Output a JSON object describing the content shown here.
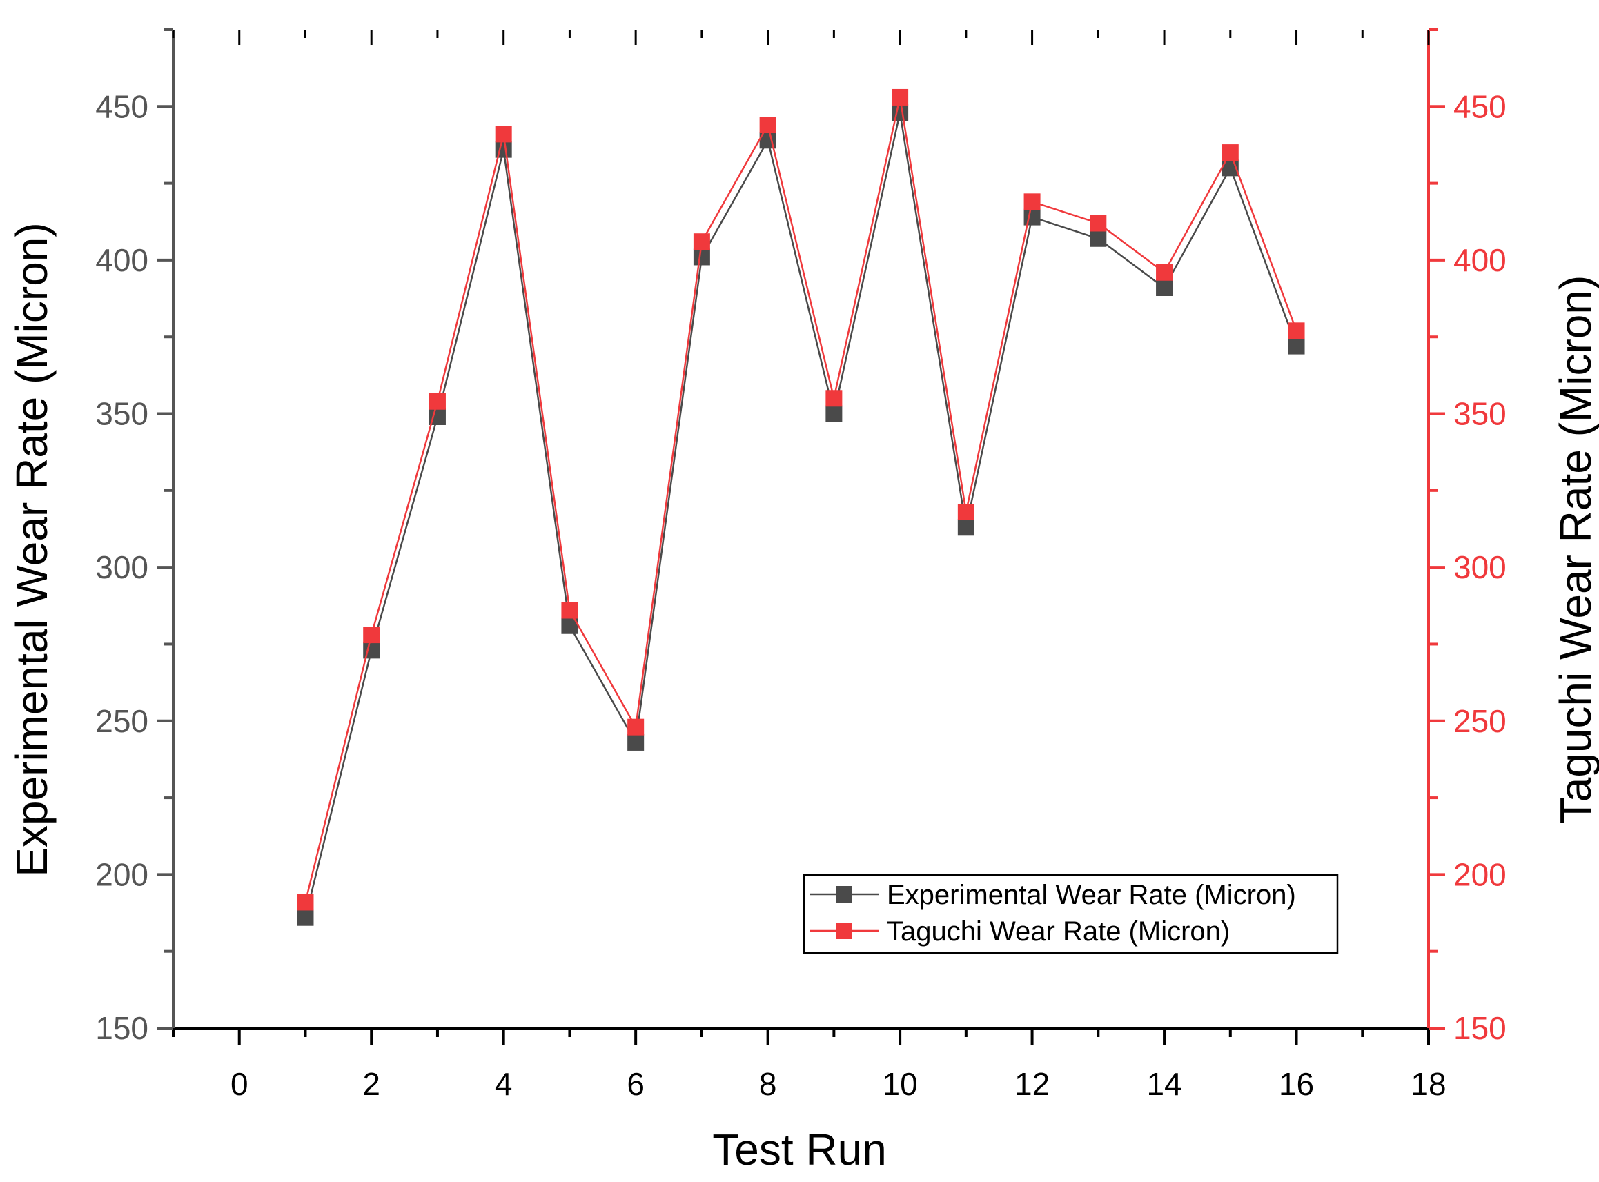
{
  "chart_data": {
    "type": "line",
    "xlabel": "Test Run",
    "ylabel_left": "Experimental Wear Rate (Micron)",
    "ylabel_right": "Taguchi Wear Rate (Micron)",
    "xlim": [
      -1,
      18
    ],
    "ylim": [
      150,
      475
    ],
    "xticks": [
      0,
      2,
      4,
      6,
      8,
      10,
      12,
      14,
      16,
      18
    ],
    "yticks": [
      150,
      200,
      250,
      300,
      350,
      400,
      450
    ],
    "grid": false,
    "legend_position": "bottom-right",
    "x": [
      1,
      2,
      3,
      4,
      5,
      6,
      7,
      8,
      9,
      10,
      11,
      12,
      13,
      14,
      15,
      16
    ],
    "series": [
      {
        "name": "Experimental Wear Rate (Micron)",
        "axis": "left",
        "color": "#4a4a4a",
        "values": [
          186,
          273,
          349,
          436,
          281,
          243,
          401,
          439,
          350,
          448,
          313,
          414,
          407,
          391,
          430,
          372
        ]
      },
      {
        "name": "Taguchi Wear Rate (Micron)",
        "axis": "right",
        "color": "#f0393c",
        "values": [
          191,
          278,
          354,
          441,
          286,
          248,
          406,
          444,
          355,
          453,
          318,
          419,
          412,
          396,
          435,
          377
        ]
      }
    ],
    "colors": {
      "left_axis": "#555555",
      "right_axis": "#f0393c"
    }
  }
}
